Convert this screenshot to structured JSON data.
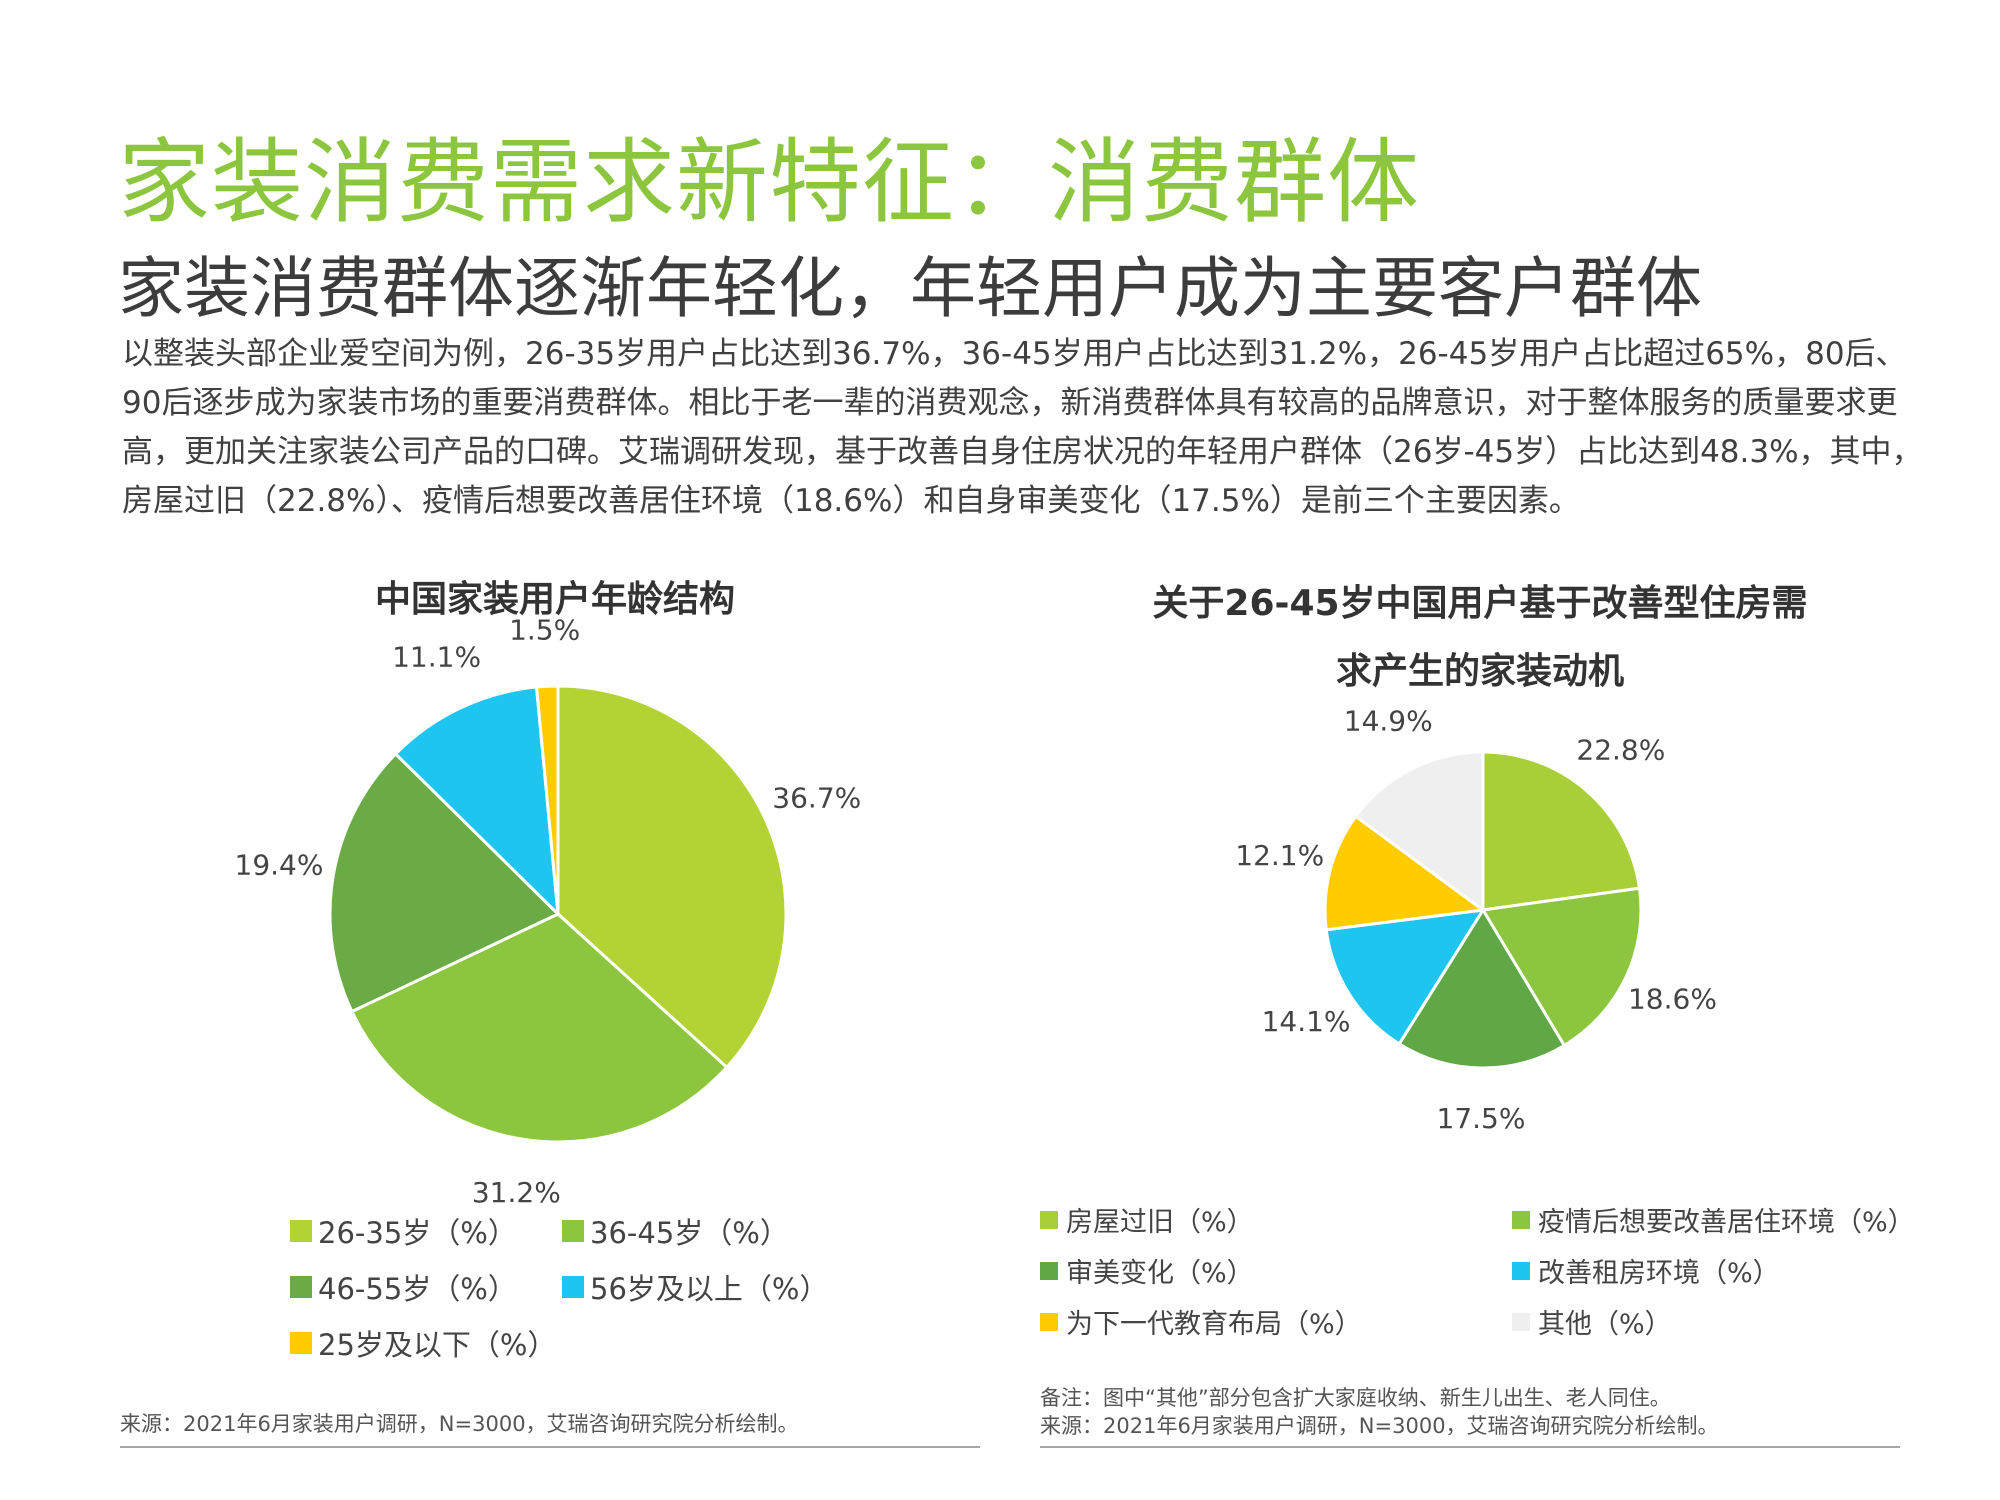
{
  "header": {
    "title": "家装消费需求新特征：消费群体",
    "subtitle": "家装消费群体逐渐年轻化，年轻用户成为主要客户群体"
  },
  "body": {
    "paragraph": "以整装头部企业爱空间为例，26-35岁用户占比达到36.7%，36-45岁用户占比达到31.2%，26-45岁用户占比超过65%，80后、90后逐步成为家装市场的重要消费群体。相比于老一辈的消费观念，新消费群体具有较高的品牌意识，对于整体服务的质量要求更高，更加关注家装公司产品的口碑。艾瑞调研发现，基于改善自身住房状况的年轻用户群体（26岁-45岁）占比达到48.3%，其中，房屋过旧（22.8%）、疫情后想要改善居住环境（18.6%）和自身审美变化（17.5%）是前三个主要因素。"
  },
  "chart_data": [
    {
      "type": "pie",
      "title": "中国家装用户年龄结构",
      "series": [
        {
          "name": "26-35岁（%）",
          "value": 36.7,
          "label": "36.7%",
          "color": "#b3d335"
        },
        {
          "name": "36-45岁（%）",
          "value": 31.2,
          "label": "31.2%",
          "color": "#8cc63f"
        },
        {
          "name": "46-55岁（%）",
          "value": 19.4,
          "label": "19.4%",
          "color": "#6aab45"
        },
        {
          "name": "56岁及以上（%）",
          "value": 11.1,
          "label": "11.1%",
          "color": "#1ec5ef"
        },
        {
          "name": "25岁及以下（%）",
          "value": 1.5,
          "label": "1.5%",
          "color": "#ffcc00"
        }
      ],
      "legend_placement": "bottom"
    },
    {
      "type": "pie",
      "title": "关于26-45岁中国用户基于改善型住房需求产生的家装动机",
      "title_lines": [
        "关于26-45岁中国用户基于改善型住房需",
        "求产生的家装动机"
      ],
      "series": [
        {
          "name": "房屋过旧（%）",
          "value": 22.8,
          "label": "22.8%",
          "color": "#a8cf38"
        },
        {
          "name": "疫情后想要改善居住环境（%）",
          "value": 18.6,
          "label": "18.6%",
          "color": "#8cc63f"
        },
        {
          "name": "审美变化（%）",
          "value": 17.5,
          "label": "17.5%",
          "color": "#5fa845"
        },
        {
          "name": "改善租房环境（%）",
          "value": 14.1,
          "label": "14.1%",
          "color": "#1ec5ef"
        },
        {
          "name": "为下一代教育布局（%）",
          "value": 12.1,
          "label": "12.1%",
          "color": "#ffcc00"
        },
        {
          "name": "其他（%）",
          "value": 14.9,
          "label": "14.9%",
          "color": "#efefef"
        }
      ],
      "legend_placement": "bottom"
    }
  ],
  "footnotes": {
    "left_source": "来源：2021年6月家装用户调研，N=3000，艾瑞咨询研究院分析绘制。",
    "right_note": "备注：图中“其他”部分包含扩大家庭收纳、新生儿出生、老人同住。",
    "right_source": "来源：2021年6月家装用户调研，N=3000，艾瑞咨询研究院分析绘制。"
  }
}
